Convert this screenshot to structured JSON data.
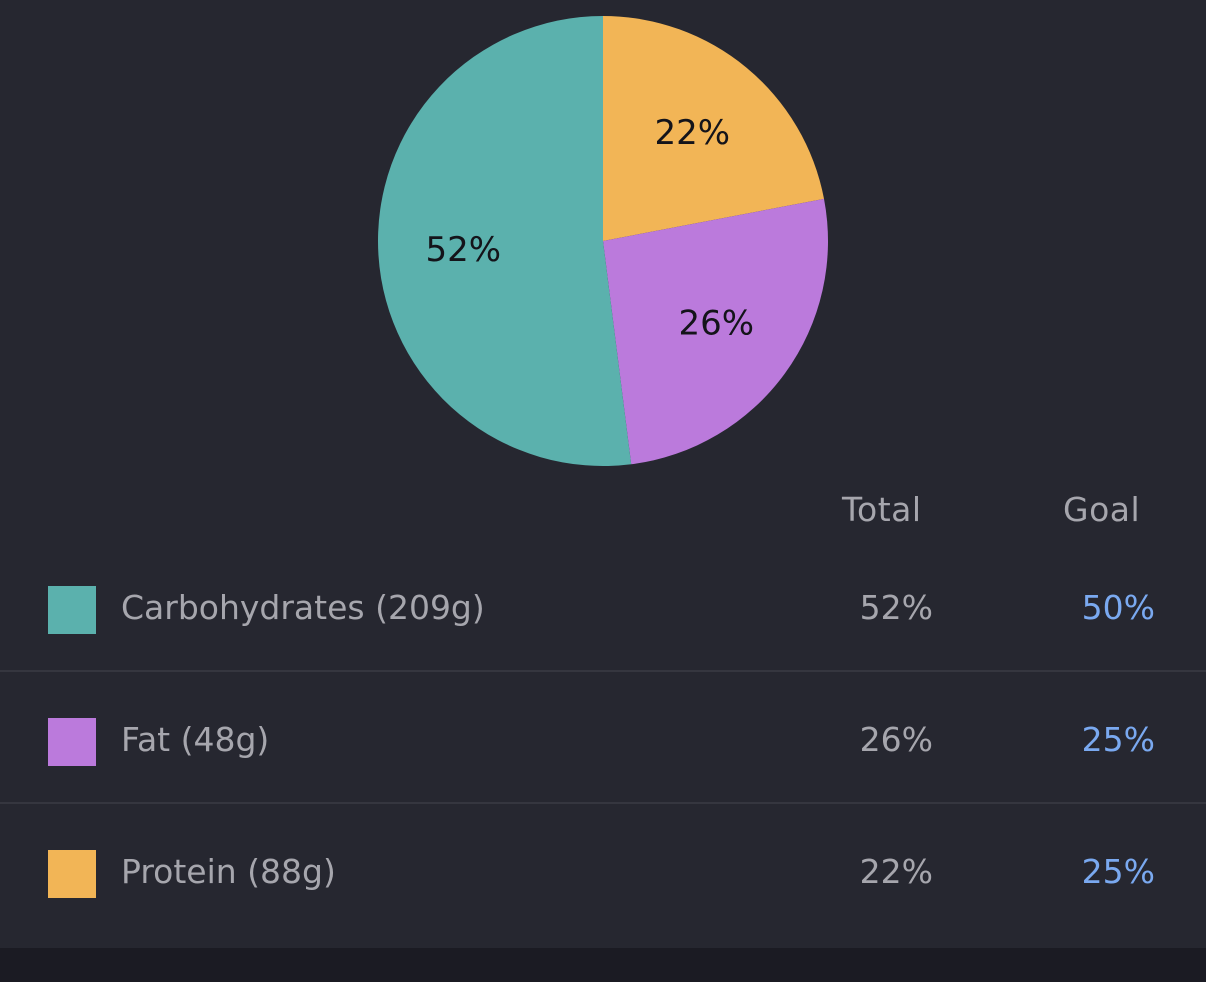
{
  "colors": {
    "carbohydrates": "#5bb1ad",
    "fat": "#bb7adc",
    "protein": "#f2b556",
    "goal_text": "#7aa9f0",
    "panel_bg": "#262730"
  },
  "chart_data": {
    "type": "pie",
    "start": "top",
    "direction": "clockwise",
    "slices": [
      {
        "name": "Protein",
        "value": 22,
        "label": "22%",
        "color": "#f2b556"
      },
      {
        "name": "Fat",
        "value": 26,
        "label": "26%",
        "color": "#bb7adc"
      },
      {
        "name": "Carbohydrates",
        "value": 52,
        "label": "52%",
        "color": "#5bb1ad"
      }
    ]
  },
  "table": {
    "headers": {
      "total": "Total",
      "goal": "Goal"
    },
    "rows": [
      {
        "label": "Carbohydrates (209g)",
        "total": "52%",
        "goal": "50%",
        "color": "#5bb1ad"
      },
      {
        "label": "Fat (48g)",
        "total": "26%",
        "goal": "25%",
        "color": "#bb7adc"
      },
      {
        "label": "Protein (88g)",
        "total": "22%",
        "goal": "25%",
        "color": "#f2b556"
      }
    ]
  }
}
